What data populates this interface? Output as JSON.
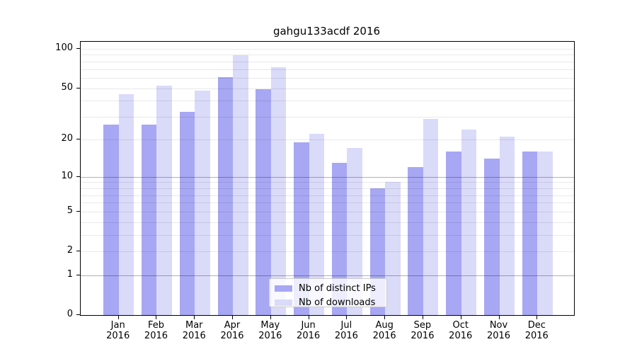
{
  "chart_data": {
    "type": "bar",
    "title": "gahgu133acdf 2016",
    "categories": [
      "Jan",
      "Feb",
      "Mar",
      "Apr",
      "May",
      "Jun",
      "Jul",
      "Aug",
      "Sep",
      "Oct",
      "Nov",
      "Dec"
    ],
    "year": "2016",
    "series": [
      {
        "name": "Nb of distinct IPs",
        "color": "#a7a7f3",
        "values": [
          26,
          26,
          33,
          61,
          49,
          19,
          13,
          8,
          12,
          16,
          14,
          16
        ]
      },
      {
        "name": "Nb of downloads",
        "color": "#dadaf9",
        "values": [
          45,
          52,
          48,
          89,
          72,
          22,
          17,
          9,
          29,
          24,
          21,
          16
        ]
      }
    ],
    "y_axis": {
      "scale": "log10(value+1)",
      "max": 113,
      "tick_labels": [
        0,
        1,
        2,
        5,
        10,
        20,
        50,
        100
      ],
      "major_gridlines": [
        1,
        10
      ],
      "minor_gridlines": [
        2,
        3,
        4,
        5,
        6,
        7,
        8,
        9,
        20,
        30,
        40,
        50,
        60,
        70,
        80,
        90,
        100
      ]
    },
    "x_axis": {
      "label_line2": "2016"
    },
    "legend": {
      "entries": [
        "Nb of distinct IPs",
        "Nb of downloads"
      ],
      "position": "lower-center"
    },
    "colors": {
      "bar_distinct_ips": "#a7a7f3",
      "bar_downloads": "#dadaf9",
      "grid_major": "#b3b3b3",
      "grid_minor": "#e9e9e9",
      "spine": "#000000",
      "background": "#ffffff"
    },
    "grid": "on",
    "ylim_bottom": 0
  }
}
